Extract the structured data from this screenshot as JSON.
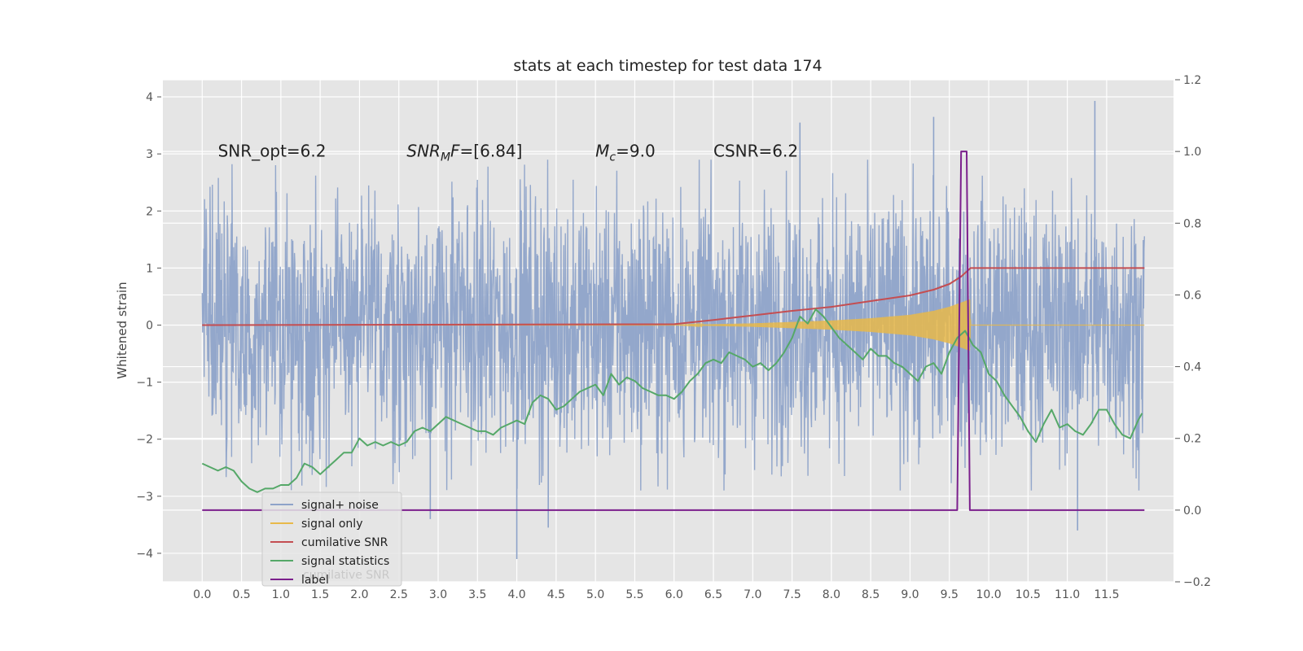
{
  "chart_data": {
    "type": "line",
    "title": "stats at each timestep for test data 174",
    "ylabel": "Whitened strain",
    "ylim": [
      -4.5,
      4.3
    ],
    "y2lim": [
      -0.2,
      1.2
    ],
    "xlim": [
      -0.5,
      12.35
    ],
    "grid": true,
    "legend_position": "lower-left",
    "x_ticks": [
      "0.0",
      "0.5",
      "1.0",
      "1.5",
      "2.0",
      "2.5",
      "3.0",
      "3.5",
      "4.0",
      "4.5",
      "5.0",
      "5.5",
      "6.0",
      "6.5",
      "7.0",
      "7.5",
      "8.0",
      "8.5",
      "9.0",
      "9.5",
      "10.0",
      "10.5",
      "11.0",
      "11.5"
    ],
    "y_ticks": [
      "−4",
      "−3",
      "−2",
      "−1",
      "0",
      "1",
      "2",
      "3",
      "4"
    ],
    "y2_ticks": [
      "−0.2",
      "0.0",
      "0.2",
      "0.4",
      "0.6",
      "0.8",
      "1.0",
      "1.2"
    ],
    "annotations": {
      "snr_opt": "SNR_opt=6.2",
      "snr_mf_main": "SNR",
      "snr_mf_sub": "M",
      "snr_mf_rest": "F=[6.84]",
      "mc_main": "M",
      "mc_sub": "c",
      "mc_rest": "=9.0",
      "csnr": "CSNR=6.2"
    },
    "legend_ghost_text": "cumilative SNR",
    "series": [
      {
        "name": "signal+ noise",
        "axis": "left",
        "color": "#8ea3c9",
        "description": "whitened noisy strain sampled densely from 0 to 11.98; roughly gaussian, spread about ±1.8 with spikes to about ±3.9",
        "x_range": [
          0.0,
          11.98
        ],
        "spread": 1.8,
        "extremes": [
          [
            4.0,
            -4.1
          ],
          [
            11.35,
            3.93
          ],
          [
            9.3,
            3.65
          ],
          [
            11.13,
            -3.6
          ],
          [
            7.6,
            3.55
          ],
          [
            4.4,
            -3.55
          ],
          [
            2.9,
            -3.4
          ]
        ]
      },
      {
        "name": "signal only",
        "axis": "left",
        "color": "#e8b94a",
        "description": "chirp signal; zero until ~6.0, amplitude grows to ~0.4 near 9.75 and stops",
        "amplitude_points": [
          [
            0.0,
            0.0
          ],
          [
            6.0,
            0.0
          ],
          [
            7.0,
            0.03
          ],
          [
            8.0,
            0.08
          ],
          [
            8.5,
            0.12
          ],
          [
            9.0,
            0.18
          ],
          [
            9.3,
            0.25
          ],
          [
            9.5,
            0.32
          ],
          [
            9.7,
            0.42
          ],
          [
            9.76,
            0.45
          ],
          [
            9.77,
            0.0
          ],
          [
            11.98,
            0.0
          ]
        ]
      },
      {
        "name": "cumilative SNR",
        "axis": "left",
        "color": "#c44e52",
        "x": [
          0.0,
          2.0,
          4.0,
          6.0,
          6.5,
          7.0,
          7.5,
          8.0,
          8.5,
          9.0,
          9.3,
          9.5,
          9.65,
          9.77,
          10.5,
          11.98
        ],
        "values": [
          0.0,
          0.005,
          0.01,
          0.015,
          0.09,
          0.17,
          0.25,
          0.32,
          0.42,
          0.52,
          0.62,
          0.72,
          0.85,
          1.0,
          1.0,
          1.0
        ]
      },
      {
        "name": "signal statistics",
        "axis": "right",
        "color": "#55a868",
        "x": [
          0.0,
          0.1,
          0.2,
          0.3,
          0.4,
          0.5,
          0.6,
          0.7,
          0.8,
          0.9,
          1.0,
          1.1,
          1.2,
          1.3,
          1.4,
          1.5,
          1.6,
          1.7,
          1.8,
          1.9,
          2.0,
          2.1,
          2.2,
          2.3,
          2.4,
          2.5,
          2.6,
          2.7,
          2.8,
          2.9,
          3.0,
          3.1,
          3.2,
          3.3,
          3.4,
          3.5,
          3.6,
          3.7,
          3.8,
          3.9,
          4.0,
          4.1,
          4.2,
          4.3,
          4.4,
          4.5,
          4.6,
          4.7,
          4.8,
          4.9,
          5.0,
          5.1,
          5.2,
          5.3,
          5.4,
          5.5,
          5.6,
          5.7,
          5.8,
          5.9,
          6.0,
          6.1,
          6.2,
          6.3,
          6.4,
          6.5,
          6.6,
          6.7,
          6.8,
          6.9,
          7.0,
          7.1,
          7.2,
          7.3,
          7.4,
          7.5,
          7.6,
          7.7,
          7.8,
          7.9,
          8.0,
          8.1,
          8.2,
          8.3,
          8.4,
          8.5,
          8.6,
          8.7,
          8.8,
          8.9,
          9.0,
          9.1,
          9.2,
          9.3,
          9.4,
          9.5,
          9.6,
          9.7,
          9.8,
          9.9,
          10.0,
          10.1,
          10.2,
          10.3,
          10.4,
          10.5,
          10.6,
          10.7,
          10.8,
          10.9,
          11.0,
          11.1,
          11.2,
          11.3,
          11.4,
          11.5,
          11.6,
          11.7,
          11.8,
          11.9
        ],
        "values": [
          0.13,
          0.12,
          0.11,
          0.12,
          0.11,
          0.08,
          0.06,
          0.05,
          0.06,
          0.06,
          0.07,
          0.07,
          0.09,
          0.13,
          0.12,
          0.1,
          0.12,
          0.14,
          0.16,
          0.16,
          0.2,
          0.18,
          0.19,
          0.18,
          0.19,
          0.18,
          0.19,
          0.22,
          0.23,
          0.22,
          0.24,
          0.26,
          0.25,
          0.24,
          0.23,
          0.22,
          0.22,
          0.21,
          0.23,
          0.24,
          0.25,
          0.24,
          0.3,
          0.32,
          0.31,
          0.28,
          0.29,
          0.31,
          0.33,
          0.34,
          0.35,
          0.32,
          0.38,
          0.35,
          0.37,
          0.36,
          0.34,
          0.33,
          0.32,
          0.32,
          0.31,
          0.33,
          0.36,
          0.38,
          0.41,
          0.42,
          0.41,
          0.44,
          0.43,
          0.42,
          0.4,
          0.41,
          0.39,
          0.41,
          0.44,
          0.48,
          0.54,
          0.52,
          0.56,
          0.54,
          0.51,
          0.48,
          0.46,
          0.44,
          0.42,
          0.45,
          0.43,
          0.43,
          0.41,
          0.4,
          0.38,
          0.36,
          0.4,
          0.41,
          0.38,
          0.44,
          0.48,
          0.5,
          0.46,
          0.44,
          0.38,
          0.36,
          0.32,
          0.29,
          0.26,
          0.22,
          0.19,
          0.24,
          0.28,
          0.23,
          0.24,
          0.22,
          0.21,
          0.24,
          0.28,
          0.28,
          0.24,
          0.21,
          0.2,
          0.25
        ],
        "x_end": 11.95,
        "value_end": 0.27
      },
      {
        "name": "label",
        "axis": "right",
        "color": "#7b1f8c",
        "x": [
          0.0,
          9.6,
          9.65,
          9.72,
          9.76,
          9.8,
          11.98
        ],
        "values": [
          0.0,
          0.0,
          1.0,
          1.0,
          0.0,
          0.0,
          0.0
        ]
      }
    ]
  }
}
